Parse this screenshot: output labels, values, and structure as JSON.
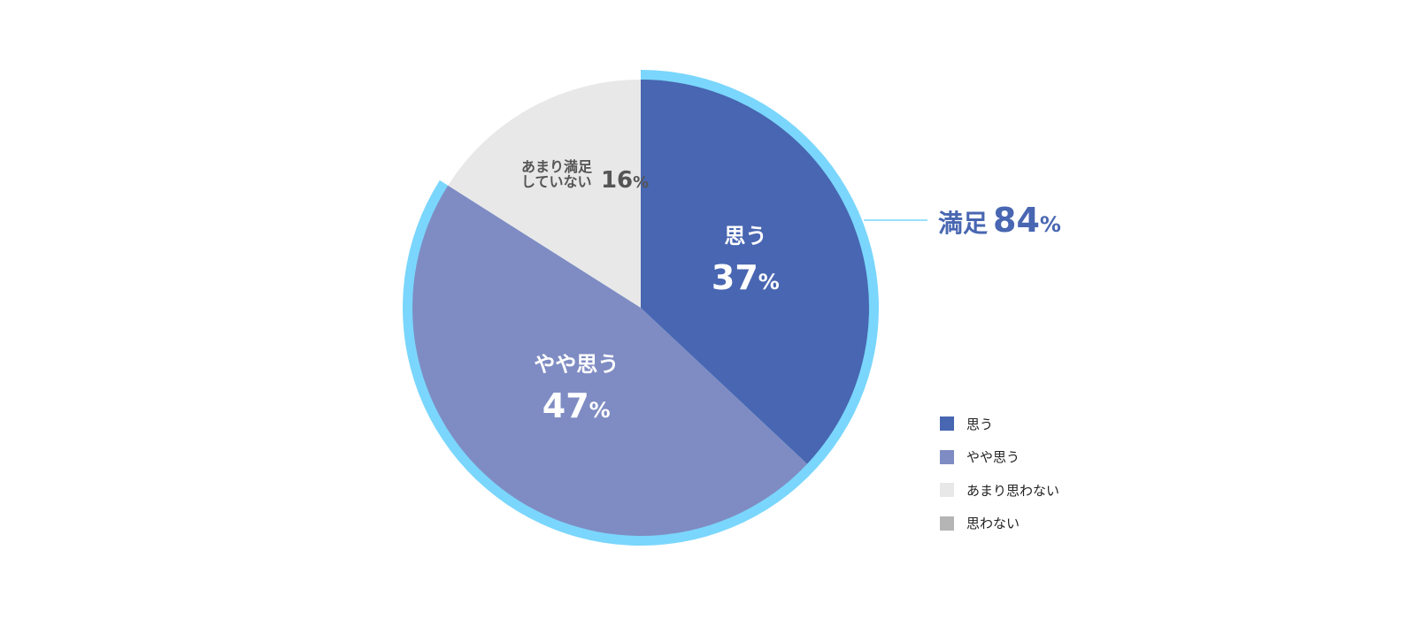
{
  "chart_data": {
    "type": "pie",
    "title": "",
    "slices": [
      {
        "label": "思う",
        "value": 37,
        "unit": "%",
        "color": "#4866b1"
      },
      {
        "label": "やや思う",
        "value": 47,
        "unit": "%",
        "color": "#7f8cc3"
      },
      {
        "label_lines": [
          "あまり満足",
          "していない"
        ],
        "value": 16,
        "unit": "%",
        "color": "#e8e8e8"
      }
    ],
    "highlight": {
      "label": "満足",
      "value": 84,
      "unit": "%",
      "color": "#4866b1",
      "ring_color": "#7ad6fc"
    },
    "legend": {
      "placement": "bottom-right",
      "items": [
        {
          "label": "思う",
          "color": "#4866b1"
        },
        {
          "label": "やや思う",
          "color": "#7f8cc3"
        },
        {
          "label": "あまり思わない",
          "color": "#e8e8e8"
        },
        {
          "label": "思わない",
          "color": "#b5b5b5"
        }
      ]
    }
  }
}
